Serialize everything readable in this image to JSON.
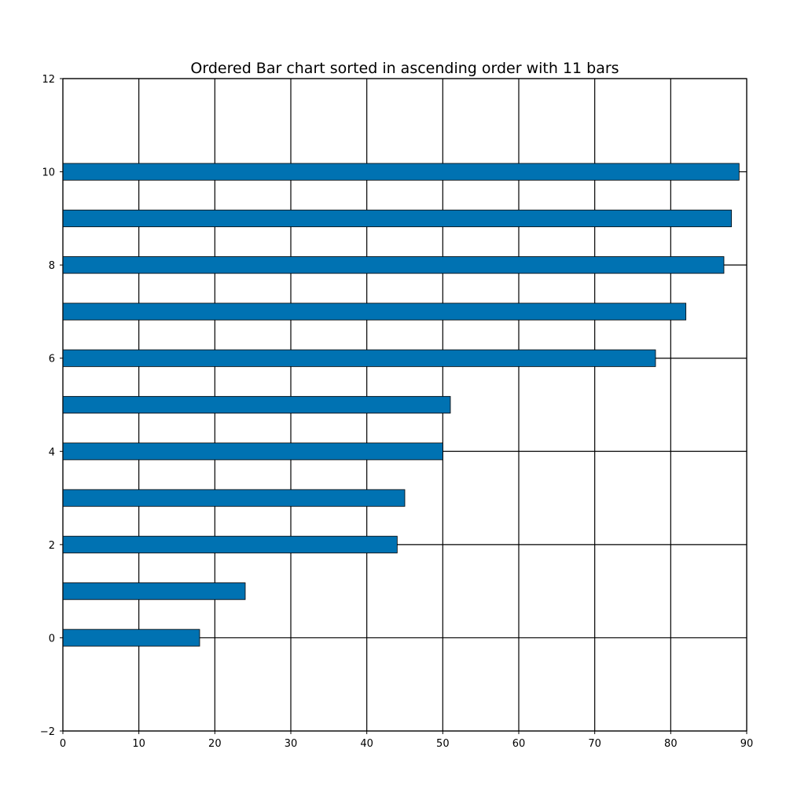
{
  "chart_data": {
    "type": "bar",
    "orientation": "horizontal",
    "title": "Ordered Bar chart sorted in ascending order with 11 bars",
    "xlabel": "",
    "ylabel": "",
    "categories": [
      0,
      1,
      2,
      3,
      4,
      5,
      6,
      7,
      8,
      9,
      10
    ],
    "values": [
      18,
      24,
      44,
      45,
      50,
      51,
      78,
      82,
      87,
      88,
      89
    ],
    "bar_color": "#0072B2",
    "bar_edge_color": "#000000",
    "xlim": [
      0,
      90
    ],
    "ylim": [
      -2,
      12
    ],
    "x_ticks": [
      0,
      10,
      20,
      30,
      40,
      50,
      60,
      70,
      80,
      90
    ],
    "y_ticks": [
      -2,
      0,
      2,
      4,
      6,
      8,
      10,
      12
    ],
    "x_tick_labels": [
      "0",
      "10",
      "20",
      "30",
      "40",
      "50",
      "60",
      "70",
      "80",
      "90"
    ],
    "y_tick_labels": [
      "−2",
      "0",
      "2",
      "4",
      "6",
      "8",
      "10",
      "12"
    ],
    "grid": true,
    "legend": "none"
  }
}
